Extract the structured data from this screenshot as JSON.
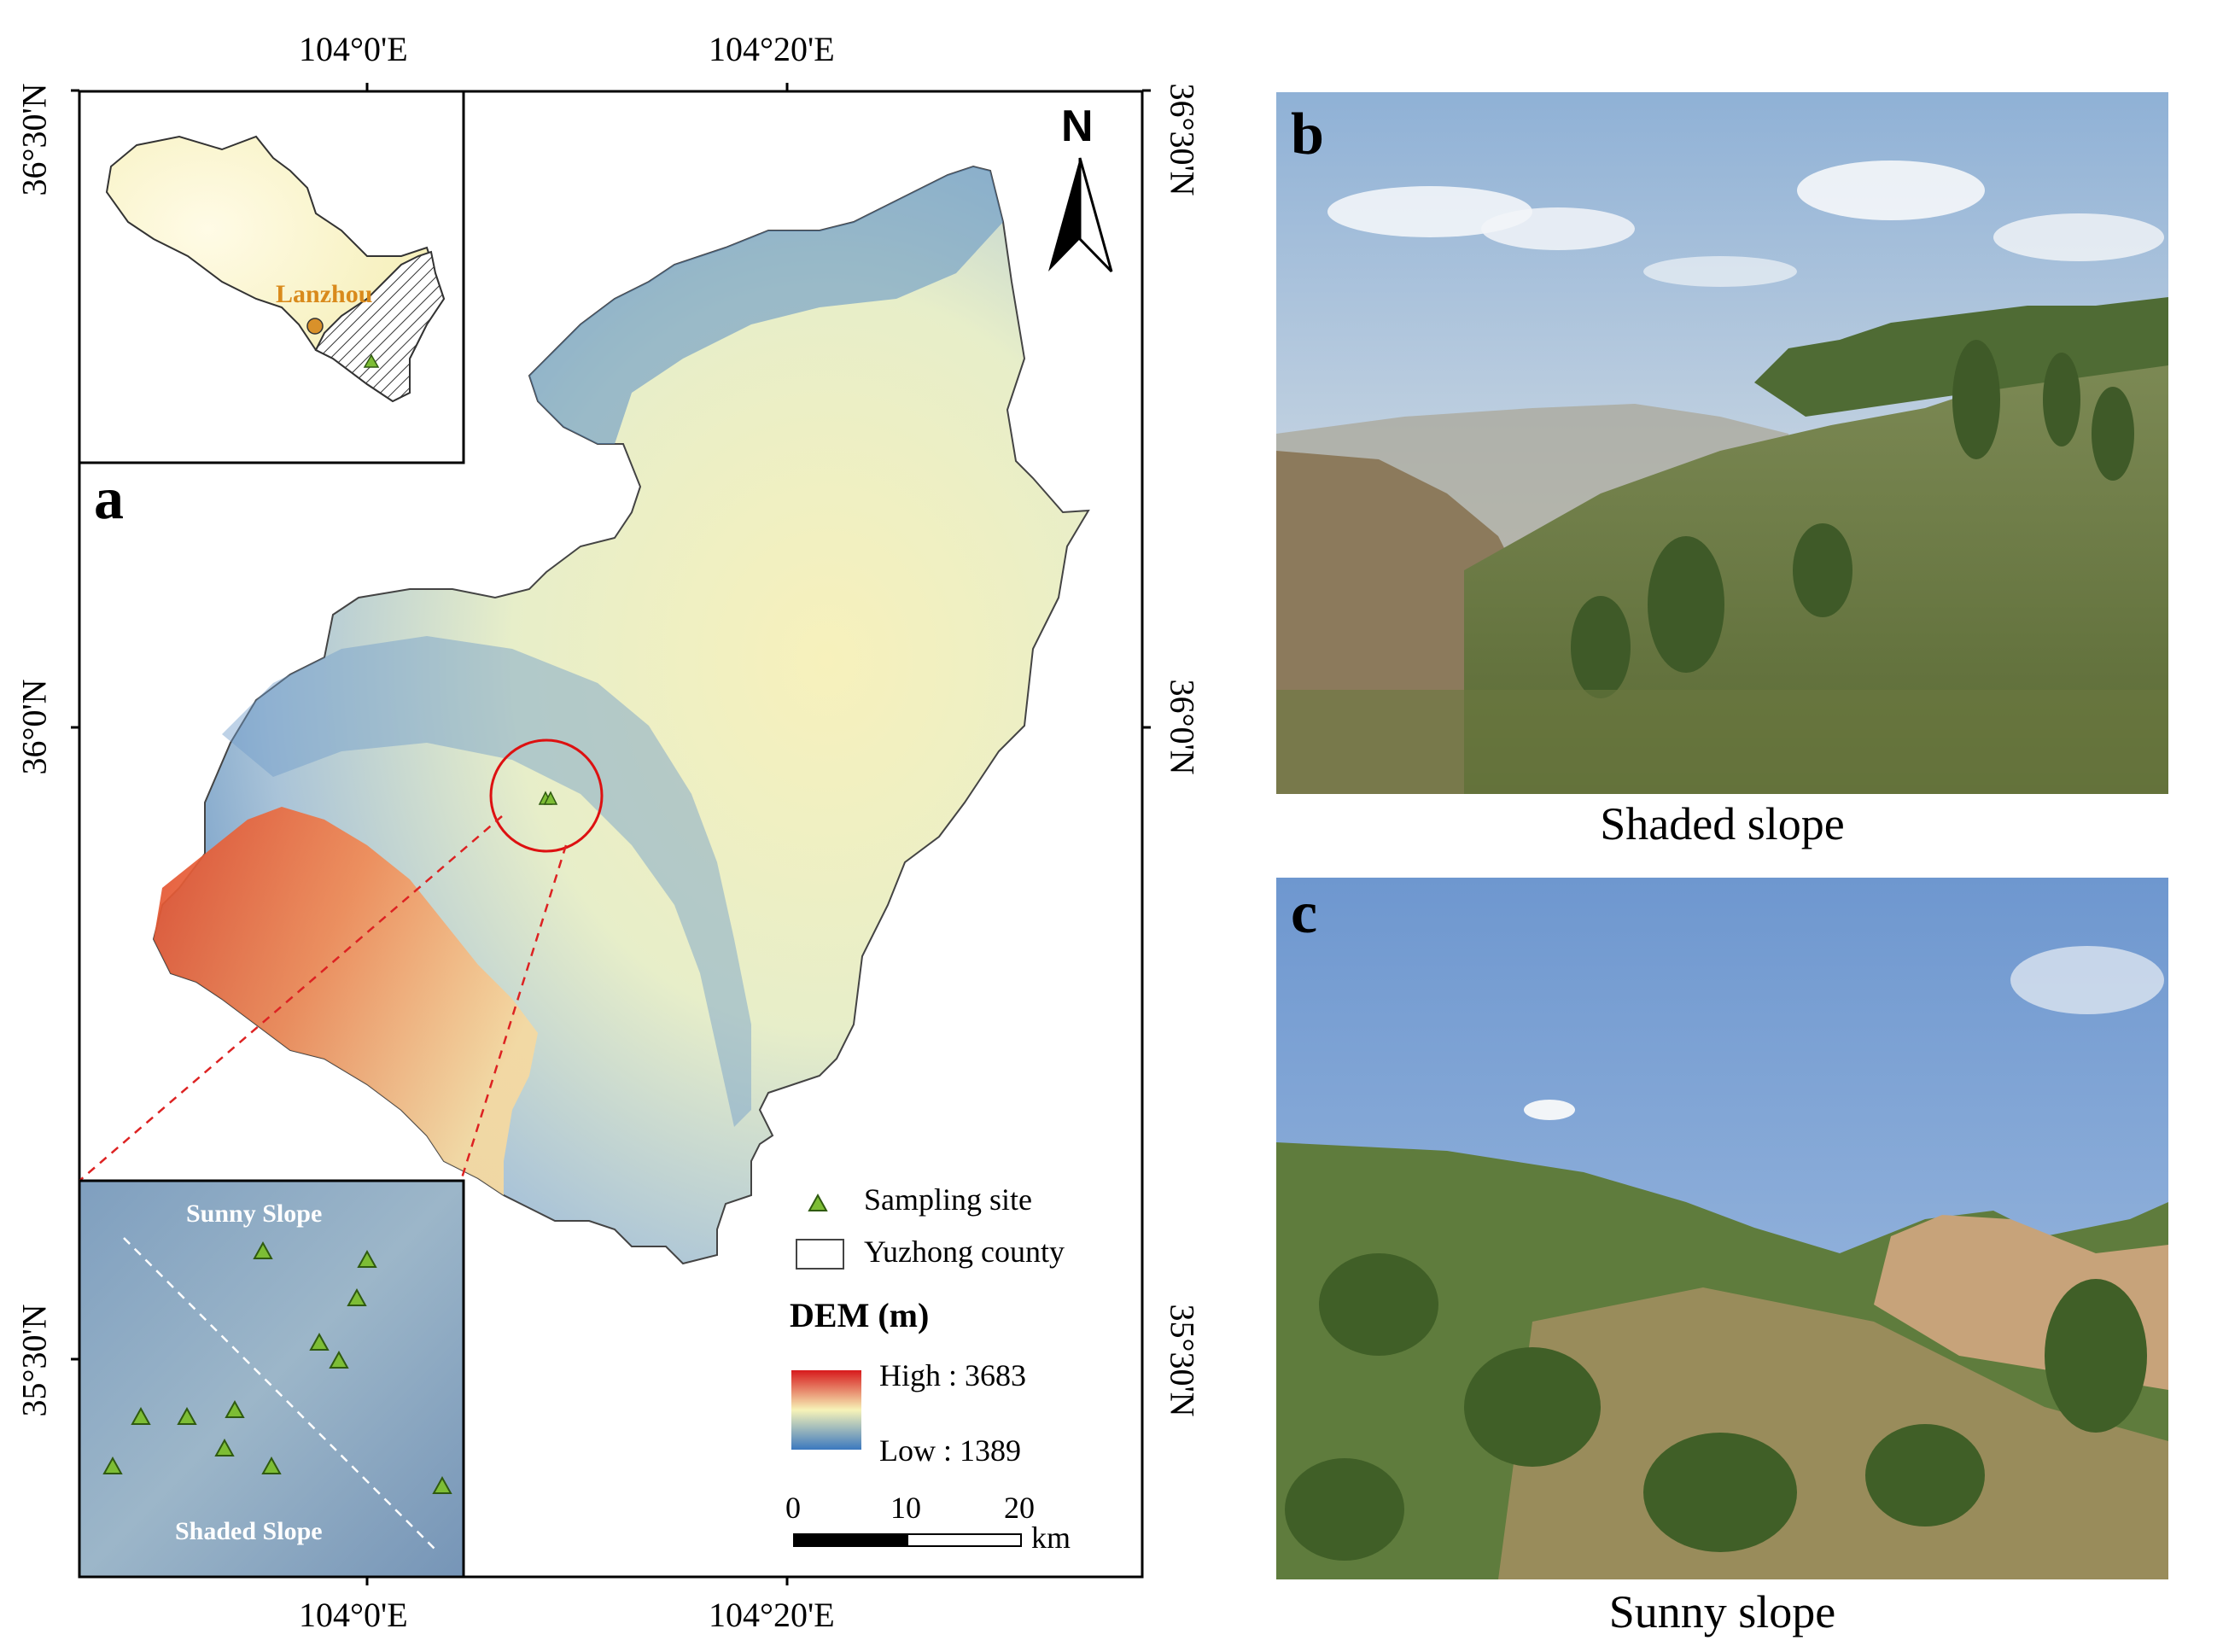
{
  "map": {
    "top_axis": {
      "lon1": "104°0'E",
      "lon2": "104°20'E"
    },
    "bottom_axis": {
      "lon1": "104°0'E",
      "lon2": "104°20'E"
    },
    "left_axis": {
      "lat1": "36°30'N",
      "lat2": "36°0'N",
      "lat3": "35°30'N"
    },
    "right_axis": {
      "lat1": "36°30'N",
      "lat2": "36°0'N",
      "lat3": "35°30'N"
    },
    "north_label": "N",
    "panel_label": "a",
    "inset_city": "Lanzhou",
    "detail_inset": {
      "sunny_label": "Sunny Slope",
      "shaded_label": "Shaded Slope"
    },
    "legend": {
      "sampling_site": "Sampling site",
      "yuzhong": "Yuzhong county",
      "dem_title": "DEM (m)",
      "high": "High : 3683",
      "low": "Low : 1389",
      "colors": {
        "high": "#d7191c",
        "mid": "#f7f3b8",
        "low": "#3b78bf"
      }
    },
    "scale": {
      "t0": "0",
      "t1": "10",
      "t2": "20",
      "unit": "km"
    }
  },
  "photos": {
    "b": {
      "label": "b",
      "caption": "Shaded slope"
    },
    "c": {
      "label": "c",
      "caption": "Sunny slope"
    }
  }
}
